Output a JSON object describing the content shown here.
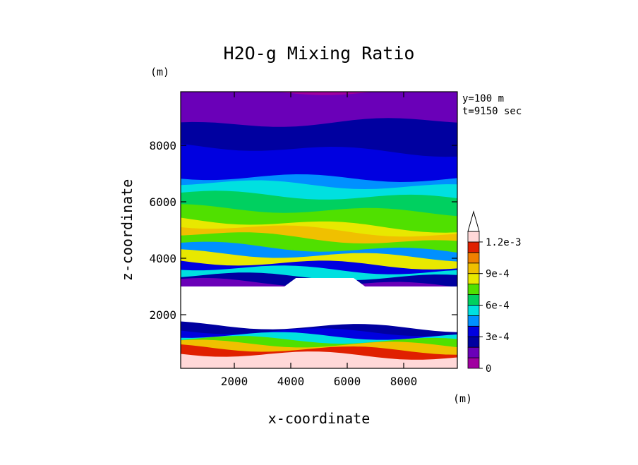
{
  "chart_data": {
    "type": "heatmap",
    "title": "H2O-g Mixing Ratio",
    "xlabel": "x-coordinate",
    "ylabel": "z-coordinate",
    "x_unit": "(m)",
    "y_unit": "(m)",
    "annotations": [
      "y=100 m",
      "t=9150 sec"
    ],
    "xlim": [
      100,
      9900
    ],
    "ylim": [
      100,
      9900
    ],
    "x_ticks": [
      2000,
      4000,
      6000,
      8000
    ],
    "y_ticks": [
      2000,
      4000,
      6000,
      8000
    ],
    "colorbar": {
      "labels": [
        "0",
        "3e-4",
        "6e-4",
        "9e-4",
        "1.2e-3"
      ],
      "levels": [
        0,
        0.0001,
        0.0002,
        0.0003,
        0.0004,
        0.0005,
        0.0006,
        0.0007,
        0.0008,
        0.0009,
        0.001,
        0.0011,
        0.0012
      ],
      "colors": [
        "#a000a0",
        "#6a00b8",
        "#0000a0",
        "#0000e0",
        "#0090ff",
        "#00e0e0",
        "#00d060",
        "#50e000",
        "#e8e800",
        "#f0c000",
        "#f08000",
        "#e02000",
        "#ffd8d8"
      ],
      "extend": "max"
    },
    "layers": [
      {
        "z": [
          9900,
          9900
        ],
        "level": 0.0001
      },
      {
        "z": [
          8700,
          8900
        ],
        "level": 0.0002
      },
      {
        "z": [
          8000,
          7700
        ],
        "level": 0.0003
      },
      {
        "z": [
          6900,
          6800
        ],
        "level": 0.0004
      },
      {
        "z": [
          6700,
          6500
        ],
        "level": 0.0005
      },
      {
        "z": [
          6300,
          6100
        ],
        "level": 0.0006
      },
      {
        "z": [
          5800,
          5600
        ],
        "level": 0.0007
      },
      {
        "z": [
          5400,
          5000
        ],
        "level": 0.0008
      },
      {
        "z": [
          5200,
          4800
        ],
        "level": 0.0009
      },
      {
        "z": [
          4900,
          4500
        ],
        "level": 0.0007
      },
      {
        "z": [
          4500,
          4200
        ],
        "level": 0.0004
      },
      {
        "z": [
          4200,
          4000
        ],
        "level": 0.0008
      },
      {
        "z": [
          3900,
          3700
        ],
        "level": 0.0003
      },
      {
        "z": [
          3700,
          3500
        ],
        "level": 0.0005
      },
      {
        "z": [
          3400,
          3300
        ],
        "level": 0.0002
      },
      {
        "z": [
          3200,
          3000
        ],
        "level": 0.0001
      },
      {
        "z": [
          1650,
          1500
        ],
        "level": 0.0002
      },
      {
        "z": [
          1450,
          1350
        ],
        "level": 0.0003
      },
      {
        "z": [
          1300,
          1200
        ],
        "level": 0.0005
      },
      {
        "z": [
          1150,
          1050
        ],
        "level": 0.0007
      },
      {
        "z": [
          1000,
          900
        ],
        "level": 0.0009
      },
      {
        "z": [
          850,
          700
        ],
        "level": 0.0011
      },
      {
        "z": [
          650,
          500
        ],
        "level": 0.0012
      }
    ],
    "dry_region": {
      "z_range": [
        1700,
        3000
      ],
      "value": "below 0"
    }
  }
}
